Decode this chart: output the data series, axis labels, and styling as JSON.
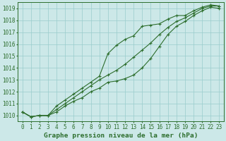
{
  "title": "Graphe pression niveau de la mer (hPa)",
  "x_hours": [
    0,
    1,
    2,
    3,
    4,
    5,
    6,
    7,
    8,
    9,
    10,
    11,
    12,
    13,
    14,
    15,
    16,
    17,
    18,
    19,
    20,
    21,
    22,
    23
  ],
  "line_top": [
    1010.3,
    1009.9,
    1010.0,
    1010.0,
    1010.8,
    1011.3,
    1011.8,
    1012.3,
    1012.8,
    1013.3,
    1015.2,
    1015.9,
    1016.4,
    1016.7,
    1017.5,
    1017.6,
    1017.7,
    1018.1,
    1018.4,
    1018.4,
    1018.8,
    1019.1,
    1019.3,
    1019.2
  ],
  "line_mid": [
    1010.3,
    1009.9,
    1010.0,
    1010.0,
    1010.5,
    1011.0,
    1011.5,
    1012.0,
    1012.5,
    1013.0,
    1013.4,
    1013.8,
    1014.3,
    1014.9,
    1015.5,
    1016.1,
    1016.8,
    1017.4,
    1017.9,
    1018.2,
    1018.6,
    1019.0,
    1019.2,
    1019.2
  ],
  "line_bot": [
    1010.3,
    1009.9,
    1010.0,
    1010.0,
    1010.3,
    1010.8,
    1011.2,
    1011.5,
    1012.0,
    1012.3,
    1012.8,
    1012.9,
    1013.1,
    1013.4,
    1014.0,
    1014.8,
    1015.8,
    1016.8,
    1017.5,
    1017.9,
    1018.4,
    1018.8,
    1019.1,
    1019.0
  ],
  "line_color": "#2d6e2d",
  "bg_color": "#cce8e8",
  "grid_color": "#99cccc",
  "ylim": [
    1009.5,
    1019.5
  ],
  "yticks": [
    1010,
    1011,
    1012,
    1013,
    1014,
    1015,
    1016,
    1017,
    1018,
    1019
  ],
  "tick_fontsize": 5.5,
  "title_fontsize": 6.8,
  "marker": "+"
}
